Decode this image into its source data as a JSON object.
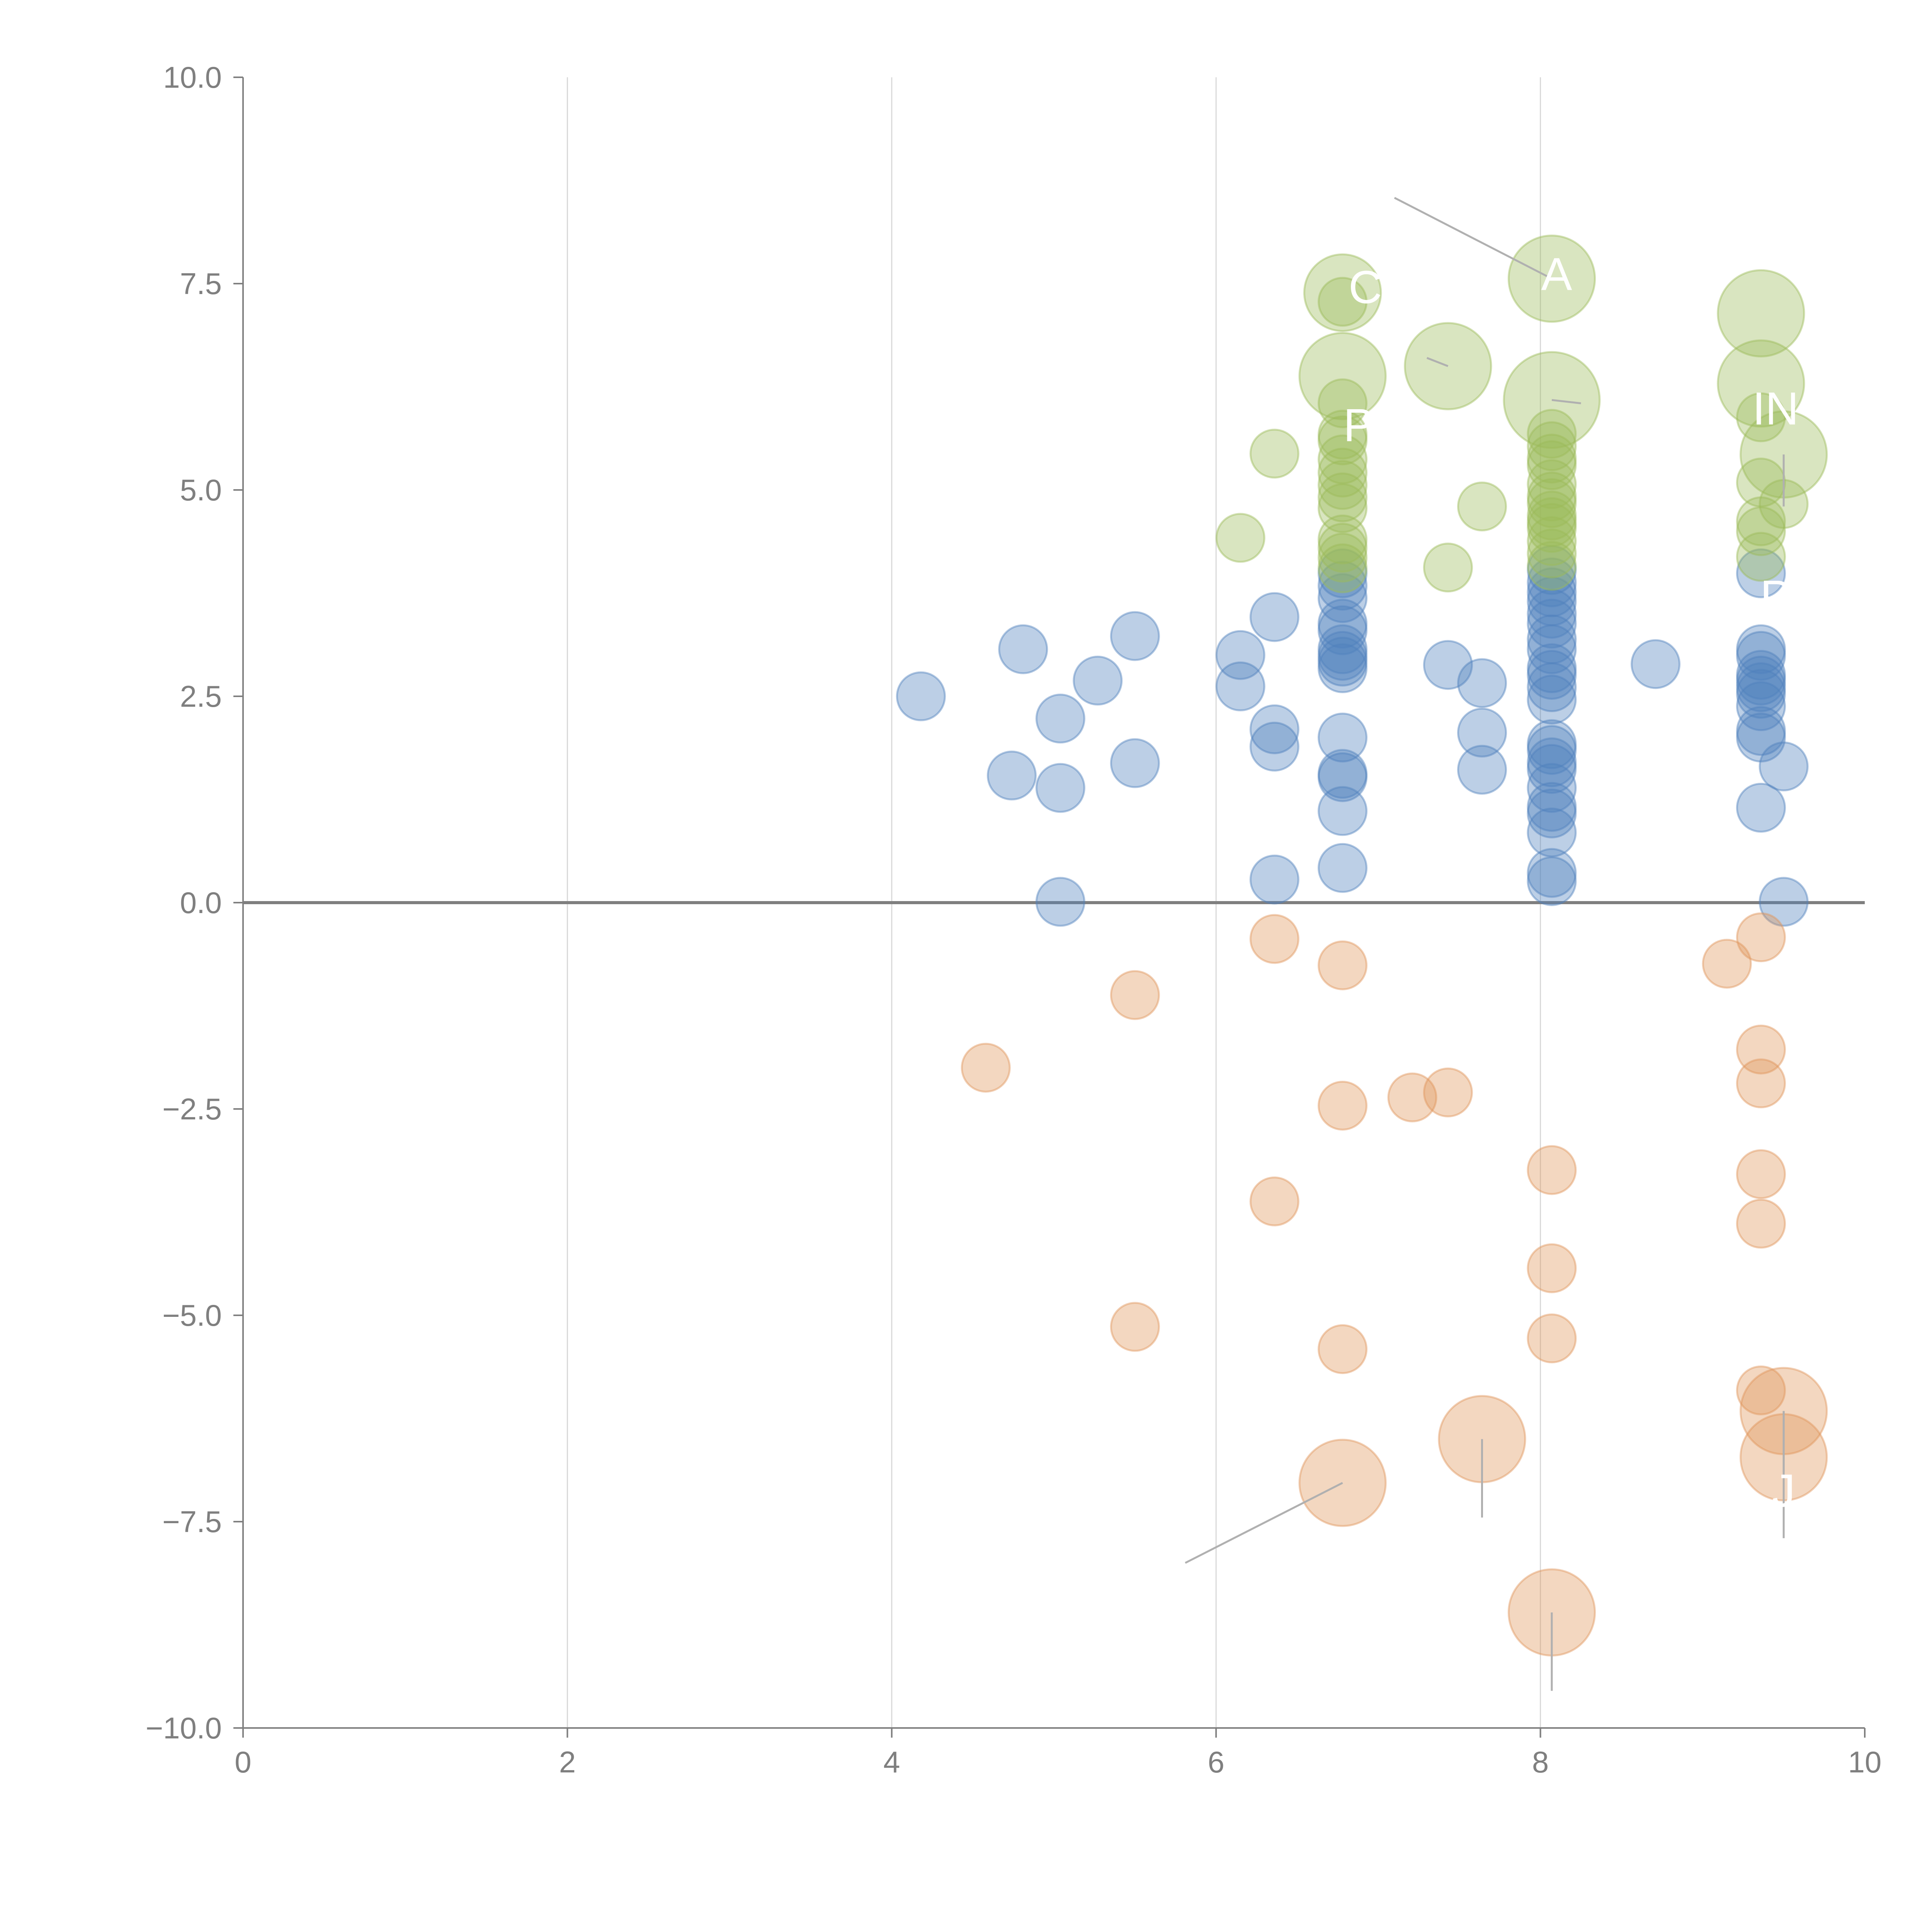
{
  "chart_data": {
    "type": "scatter",
    "title": "",
    "xlabel": "",
    "ylabel": "",
    "xlim": [
      0,
      10
    ],
    "ylim": [
      -10,
      10
    ],
    "x_ticks": [
      0,
      2,
      4,
      6,
      8,
      10
    ],
    "x_tick_labels": [
      "0",
      "2",
      "4",
      "6",
      "8",
      "10"
    ],
    "y_ticks": [
      10,
      7.5,
      5,
      2.5,
      0,
      -2.5,
      -5,
      -7.5,
      -10
    ],
    "y_tick_labels": [
      "10.0",
      "7.5",
      "5.0",
      "2.5",
      "0.0",
      "−2.5",
      "−5.0",
      "−7.5",
      "−10.0"
    ],
    "vertical_grid": true,
    "zero_line": true,
    "colors": {
      "blue": "#4f81bd",
      "green": "#9bbb59",
      "orange": "#e0955a",
      "axis": "#7f7f7f",
      "grid": "#d9d9d9",
      "leader": "#b0b0b0",
      "label": "#ffffff"
    },
    "series": [
      {
        "name": "blue",
        "color": "#4f81bd",
        "points": [
          {
            "x": 4.18,
            "y": 2.5,
            "r": 1
          },
          {
            "x": 4.74,
            "y": 1.54,
            "r": 1
          },
          {
            "x": 4.81,
            "y": 3.07,
            "r": 1
          },
          {
            "x": 5.04,
            "y": 2.23,
            "r": 1
          },
          {
            "x": 5.04,
            "y": 1.39,
            "r": 1
          },
          {
            "x": 5.04,
            "y": 0.01,
            "r": 1
          },
          {
            "x": 5.27,
            "y": 2.69,
            "r": 1
          },
          {
            "x": 5.5,
            "y": 3.23,
            "r": 1
          },
          {
            "x": 5.5,
            "y": 1.69,
            "r": 1
          },
          {
            "x": 6.15,
            "y": 3.0,
            "r": 1
          },
          {
            "x": 6.15,
            "y": 2.62,
            "r": 1
          },
          {
            "x": 6.36,
            "y": 3.46,
            "r": 1
          },
          {
            "x": 6.36,
            "y": 2.1,
            "r": 1
          },
          {
            "x": 6.36,
            "y": 1.89,
            "r": 1
          },
          {
            "x": 6.36,
            "y": 0.28,
            "r": 1
          },
          {
            "x": 6.78,
            "y": 3.99,
            "r": 1
          },
          {
            "x": 6.78,
            "y": 3.84,
            "r": 1
          },
          {
            "x": 6.78,
            "y": 3.69,
            "r": 1
          },
          {
            "x": 6.78,
            "y": 3.38,
            "r": 1
          },
          {
            "x": 6.78,
            "y": 3.3,
            "r": 1
          },
          {
            "x": 6.78,
            "y": 3.07,
            "r": 1
          },
          {
            "x": 6.78,
            "y": 2.99,
            "r": 1
          },
          {
            "x": 6.78,
            "y": 2.92,
            "r": 1
          },
          {
            "x": 6.78,
            "y": 2.84,
            "r": 1
          },
          {
            "x": 6.78,
            "y": 2.0,
            "r": 1
          },
          {
            "x": 6.78,
            "y": 1.56,
            "r": 1
          },
          {
            "x": 6.78,
            "y": 1.52,
            "r": 1
          },
          {
            "x": 6.78,
            "y": 1.11,
            "r": 1
          },
          {
            "x": 6.78,
            "y": 0.42,
            "r": 1
          },
          {
            "x": 7.43,
            "y": 2.88,
            "r": 1
          },
          {
            "x": 7.64,
            "y": 2.66,
            "r": 1
          },
          {
            "x": 7.64,
            "y": 2.06,
            "r": 1
          },
          {
            "x": 7.64,
            "y": 1.61,
            "r": 1
          },
          {
            "x": 8.07,
            "y": 4.03,
            "r": 1
          },
          {
            "x": 8.07,
            "y": 3.88,
            "r": 1
          },
          {
            "x": 8.07,
            "y": 3.76,
            "r": 1
          },
          {
            "x": 8.07,
            "y": 3.65,
            "r": 1
          },
          {
            "x": 8.07,
            "y": 3.5,
            "r": 1
          },
          {
            "x": 8.07,
            "y": 3.38,
            "r": 1
          },
          {
            "x": 8.07,
            "y": 3.19,
            "r": 1
          },
          {
            "x": 8.07,
            "y": 3.07,
            "r": 1
          },
          {
            "x": 8.07,
            "y": 2.84,
            "r": 1
          },
          {
            "x": 8.07,
            "y": 2.76,
            "r": 1
          },
          {
            "x": 8.07,
            "y": 2.61,
            "r": 1
          },
          {
            "x": 8.07,
            "y": 2.46,
            "r": 1
          },
          {
            "x": 8.07,
            "y": 1.92,
            "r": 1
          },
          {
            "x": 8.07,
            "y": 1.85,
            "r": 1
          },
          {
            "x": 8.07,
            "y": 1.7,
            "r": 1
          },
          {
            "x": 8.07,
            "y": 1.62,
            "r": 1
          },
          {
            "x": 8.07,
            "y": 1.39,
            "r": 1
          },
          {
            "x": 8.07,
            "y": 1.16,
            "r": 1
          },
          {
            "x": 8.07,
            "y": 1.08,
            "r": 1
          },
          {
            "x": 8.07,
            "y": 0.85,
            "r": 1
          },
          {
            "x": 8.07,
            "y": 0.36,
            "r": 1
          },
          {
            "x": 8.07,
            "y": 0.26,
            "r": 1
          },
          {
            "x": 8.71,
            "y": 2.89,
            "r": 1
          },
          {
            "x": 9.36,
            "y": 3.99,
            "r": 1
          },
          {
            "x": 9.36,
            "y": 3.07,
            "r": 1
          },
          {
            "x": 9.36,
            "y": 2.99,
            "r": 1
          },
          {
            "x": 9.36,
            "y": 2.76,
            "r": 1
          },
          {
            "x": 9.36,
            "y": 2.69,
            "r": 1
          },
          {
            "x": 9.36,
            "y": 2.61,
            "r": 1
          },
          {
            "x": 9.36,
            "y": 2.53,
            "r": 1
          },
          {
            "x": 9.36,
            "y": 2.38,
            "r": 1
          },
          {
            "x": 9.36,
            "y": 2.08,
            "r": 1
          },
          {
            "x": 9.36,
            "y": 2.0,
            "r": 1
          },
          {
            "x": 9.36,
            "y": 1.15,
            "r": 1
          },
          {
            "x": 9.5,
            "y": 1.65,
            "r": 1
          },
          {
            "x": 9.5,
            "y": 0.01,
            "r": 1
          }
        ]
      },
      {
        "name": "green",
        "color": "#9bbb59",
        "points": [
          {
            "x": 6.15,
            "y": 4.42,
            "r": 1
          },
          {
            "x": 6.36,
            "y": 5.44,
            "r": 1
          },
          {
            "x": 6.78,
            "y": 7.39,
            "r": 1.6
          },
          {
            "x": 6.78,
            "y": 7.28,
            "r": 1
          },
          {
            "x": 6.78,
            "y": 6.38,
            "r": 1.8
          },
          {
            "x": 6.78,
            "y": 6.05,
            "r": 1
          },
          {
            "x": 6.78,
            "y": 5.67,
            "r": 1
          },
          {
            "x": 6.78,
            "y": 5.6,
            "r": 1
          },
          {
            "x": 6.78,
            "y": 5.37,
            "r": 1
          },
          {
            "x": 6.78,
            "y": 5.21,
            "r": 1
          },
          {
            "x": 6.78,
            "y": 5.06,
            "r": 1
          },
          {
            "x": 6.78,
            "y": 4.91,
            "r": 1
          },
          {
            "x": 6.78,
            "y": 4.78,
            "r": 1
          },
          {
            "x": 6.78,
            "y": 4.4,
            "r": 1
          },
          {
            "x": 6.78,
            "y": 4.3,
            "r": 1
          },
          {
            "x": 6.78,
            "y": 4.18,
            "r": 1
          },
          {
            "x": 6.78,
            "y": 4.05,
            "r": 1
          },
          {
            "x": 7.43,
            "y": 6.5,
            "r": 1.8
          },
          {
            "x": 7.43,
            "y": 4.06,
            "r": 1
          },
          {
            "x": 7.64,
            "y": 4.8,
            "r": 1
          },
          {
            "x": 8.07,
            "y": 7.56,
            "r": 1.8
          },
          {
            "x": 8.07,
            "y": 6.09,
            "r": 2
          },
          {
            "x": 8.07,
            "y": 5.68,
            "r": 1
          },
          {
            "x": 8.07,
            "y": 5.53,
            "r": 1
          },
          {
            "x": 8.07,
            "y": 5.38,
            "r": 1
          },
          {
            "x": 8.07,
            "y": 5.3,
            "r": 1
          },
          {
            "x": 8.07,
            "y": 5.07,
            "r": 1
          },
          {
            "x": 8.07,
            "y": 4.92,
            "r": 1
          },
          {
            "x": 8.07,
            "y": 4.84,
            "r": 1
          },
          {
            "x": 8.07,
            "y": 4.69,
            "r": 1
          },
          {
            "x": 8.07,
            "y": 4.61,
            "r": 1
          },
          {
            "x": 8.07,
            "y": 4.54,
            "r": 1
          },
          {
            "x": 8.07,
            "y": 4.38,
            "r": 1
          },
          {
            "x": 8.07,
            "y": 4.23,
            "r": 1
          },
          {
            "x": 8.07,
            "y": 4.08,
            "r": 1
          },
          {
            "x": 9.36,
            "y": 7.14,
            "r": 1.8
          },
          {
            "x": 9.36,
            "y": 6.29,
            "r": 1.8
          },
          {
            "x": 9.36,
            "y": 5.88,
            "r": 1
          },
          {
            "x": 9.36,
            "y": 5.09,
            "r": 1
          },
          {
            "x": 9.36,
            "y": 4.62,
            "r": 1
          },
          {
            "x": 9.36,
            "y": 4.5,
            "r": 1
          },
          {
            "x": 9.36,
            "y": 4.19,
            "r": 1
          },
          {
            "x": 9.5,
            "y": 5.43,
            "r": 1.8
          },
          {
            "x": 9.5,
            "y": 4.83,
            "r": 1
          }
        ]
      },
      {
        "name": "orange",
        "color": "#e0955a",
        "points": [
          {
            "x": 4.58,
            "y": -2.0,
            "r": 1
          },
          {
            "x": 5.5,
            "y": -1.12,
            "r": 1
          },
          {
            "x": 5.5,
            "y": -5.14,
            "r": 1
          },
          {
            "x": 6.36,
            "y": -0.44,
            "r": 1
          },
          {
            "x": 6.36,
            "y": -3.62,
            "r": 1
          },
          {
            "x": 6.78,
            "y": -0.76,
            "r": 1
          },
          {
            "x": 6.78,
            "y": -2.46,
            "r": 1
          },
          {
            "x": 6.78,
            "y": -5.41,
            "r": 1
          },
          {
            "x": 6.78,
            "y": -7.03,
            "r": 1.8
          },
          {
            "x": 7.21,
            "y": -2.36,
            "r": 1
          },
          {
            "x": 7.43,
            "y": -2.3,
            "r": 1
          },
          {
            "x": 7.64,
            "y": -6.5,
            "r": 1.8
          },
          {
            "x": 8.07,
            "y": -3.24,
            "r": 1
          },
          {
            "x": 8.07,
            "y": -4.43,
            "r": 1
          },
          {
            "x": 8.07,
            "y": -5.28,
            "r": 1
          },
          {
            "x": 8.07,
            "y": -8.6,
            "r": 1.8
          },
          {
            "x": 9.15,
            "y": -0.74,
            "r": 1
          },
          {
            "x": 9.36,
            "y": -0.42,
            "r": 1
          },
          {
            "x": 9.36,
            "y": -1.78,
            "r": 1
          },
          {
            "x": 9.36,
            "y": -2.19,
            "r": 1
          },
          {
            "x": 9.36,
            "y": -3.29,
            "r": 1
          },
          {
            "x": 9.36,
            "y": -3.89,
            "r": 1
          },
          {
            "x": 9.36,
            "y": -5.91,
            "r": 1
          },
          {
            "x": 9.5,
            "y": -6.16,
            "r": 1.8
          },
          {
            "x": 9.5,
            "y": -6.72,
            "r": 1.8
          }
        ]
      }
    ],
    "annotations": [
      {
        "text": "C",
        "x": 6.92,
        "y": 7.45,
        "ax": 6.85,
        "ay": 7.45,
        "lx": 6.85,
        "ly": 7.45
      },
      {
        "text": "A",
        "x": 8.1,
        "y": 7.61,
        "ax": 8.07,
        "ay": 7.56,
        "lx": 7.1,
        "ly": 8.54
      },
      {
        "text": "P",
        "x": 6.88,
        "y": 5.78,
        "ax": 7.43,
        "ay": 6.5,
        "lx": 7.3,
        "ly": 6.6
      },
      {
        "text": "IN",
        "x": 9.45,
        "y": 5.98,
        "ax": 8.07,
        "ay": 6.09,
        "lx": 8.25,
        "ly": 6.05
      },
      {
        "text": "P",
        "x": 9.45,
        "y": 3.7,
        "ax": 9.5,
        "ay": 5.43,
        "lx": 9.5,
        "ly": 4.8
      },
      {
        "text": "J",
        "x": 9.5,
        "y": -7.13,
        "ax": 9.5,
        "ay": -6.16,
        "lx": 9.5,
        "ly": -7.7
      }
    ]
  }
}
